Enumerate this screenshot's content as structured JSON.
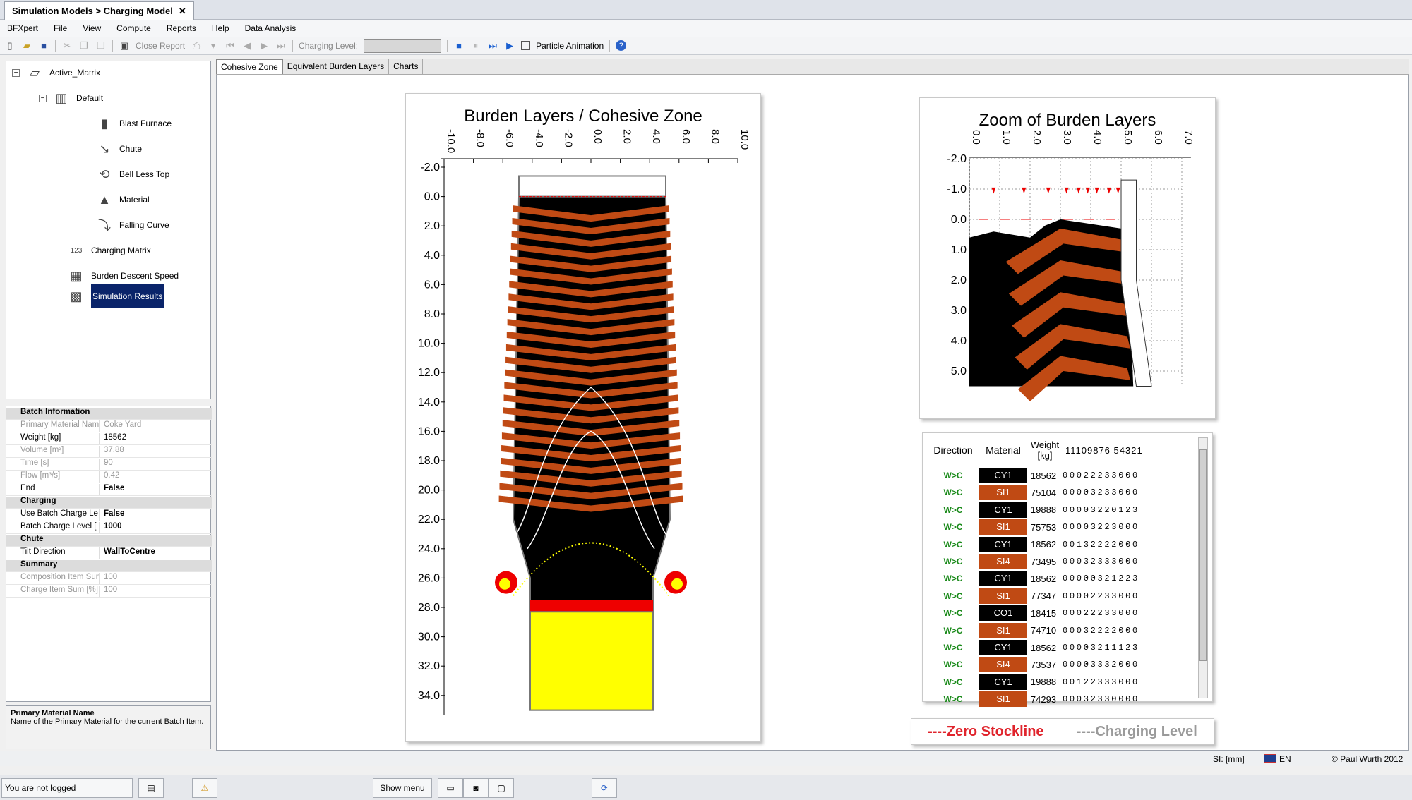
{
  "window": {
    "title": "Simulation Models > Charging Model",
    "close": "✕"
  },
  "menu": [
    "BFXpert",
    "File",
    "View",
    "Compute",
    "Reports",
    "Help",
    "Data Analysis"
  ],
  "toolbar": {
    "close_report": "Close Report",
    "charging_level": "Charging Level:",
    "particle_animation": "Particle Animation"
  },
  "tree": {
    "root": "Active_Matrix",
    "default": "Default",
    "children": [
      "Blast Furnace",
      "Chute",
      "Bell Less Top",
      "Material",
      "Falling Curve"
    ],
    "charging_matrix": "Charging Matrix",
    "burden_descent": "Burden Descent Speed",
    "results": "Simulation Results"
  },
  "props": {
    "batch_info": "Batch Information",
    "primary_name": "Primary Material Name",
    "primary_val": "Coke Yard",
    "weight_name": "Weight [kg]",
    "weight_val": "18562",
    "volume_name": "Volume [m³]",
    "volume_val": "37.88",
    "time_name": "Time [s]",
    "time_val": "90",
    "flow_name": "Flow [m³/s]",
    "flow_val": "0.42",
    "end_name": "End",
    "end_val": "False",
    "charging": "Charging",
    "use_name": "Use Batch Charge Le",
    "use_val": "False",
    "level_name": "Batch Charge Level [",
    "level_val": "1000",
    "chute": "Chute",
    "tilt_name": "Tilt Direction",
    "tilt_val": "WallToCentre",
    "summary": "Summary",
    "comp_name": "Composition Item Sun",
    "comp_val": "100",
    "charge_name": "Charge Item Sum [%]",
    "charge_val": "100"
  },
  "desc": {
    "title": "Primary Material Name",
    "text": "Name of the Primary Material for the current Batch Item."
  },
  "content_tabs": [
    "Cohesive Zone",
    "Equivalent Burden Layers",
    "Charts"
  ],
  "chart_main": {
    "title": "Burden Layers / Cohesive Zone",
    "xticks": [
      "-10.0",
      "-8.0",
      "-6.0",
      "-4.0",
      "-2.0",
      "0.0",
      "2.0",
      "4.0",
      "6.0",
      "8.0",
      "10.0"
    ],
    "yticks": [
      "-2.0",
      "0.0",
      "2.0",
      "4.0",
      "6.0",
      "8.0",
      "10.0",
      "12.0",
      "14.0",
      "16.0",
      "18.0",
      "20.0",
      "22.0",
      "24.0",
      "26.0",
      "28.0",
      "30.0",
      "32.0",
      "34.0"
    ]
  },
  "chart_zoom": {
    "title": "Zoom of Burden Layers",
    "xticks": [
      "0.0",
      "1.0",
      "2.0",
      "3.0",
      "4.0",
      "5.0",
      "6.0",
      "7.0"
    ],
    "yticks": [
      "-2.0",
      "-1.0",
      "0.0",
      "1.0",
      "2.0",
      "3.0",
      "4.0",
      "5.0"
    ]
  },
  "table": {
    "headers": {
      "direction": "Direction",
      "material": "Material",
      "weight": "Weight [kg]",
      "digits": "11109876 54321"
    },
    "rows": [
      {
        "dir": "W>C",
        "mat": "CY1",
        "wt": "18562",
        "d": "00022233000"
      },
      {
        "dir": "W>C",
        "mat": "SI1",
        "wt": "75104",
        "d": "00003233000"
      },
      {
        "dir": "W>C",
        "mat": "CY1",
        "wt": "19888",
        "d": "00003220123"
      },
      {
        "dir": "W>C",
        "mat": "SI1",
        "wt": "75753",
        "d": "00003223000"
      },
      {
        "dir": "W>C",
        "mat": "CY1",
        "wt": "18562",
        "d": "00132222000"
      },
      {
        "dir": "W>C",
        "mat": "SI4",
        "wt": "73495",
        "d": "00032333000"
      },
      {
        "dir": "W>C",
        "mat": "CY1",
        "wt": "18562",
        "d": "00000321223"
      },
      {
        "dir": "W>C",
        "mat": "SI1",
        "wt": "77347",
        "d": "00002233000"
      },
      {
        "dir": "W>C",
        "mat": "CO1",
        "wt": "18415",
        "d": "00022233000"
      },
      {
        "dir": "W>C",
        "mat": "SI1",
        "wt": "74710",
        "d": "00032222000"
      },
      {
        "dir": "W>C",
        "mat": "CY1",
        "wt": "18562",
        "d": "00003211123"
      },
      {
        "dir": "W>C",
        "mat": "SI4",
        "wt": "73537",
        "d": "00003332000"
      },
      {
        "dir": "W>C",
        "mat": "CY1",
        "wt": "19888",
        "d": "00122333000"
      },
      {
        "dir": "W>C",
        "mat": "SI1",
        "wt": "74293",
        "d": "00032330000"
      }
    ]
  },
  "legend": {
    "zero": "----Zero Stockline",
    "charging": "----Charging Level"
  },
  "status": {
    "unit": "SI:  [mm]",
    "lang": "EN",
    "copyright": "© Paul Wurth 2012"
  },
  "taskbar": {
    "login": "You are not logged",
    "show_menu": "Show menu"
  },
  "colors": {
    "coke": "#000000",
    "sinter": "#c04a14",
    "cohesive": "#ffff00",
    "selected": "#0a246a"
  }
}
